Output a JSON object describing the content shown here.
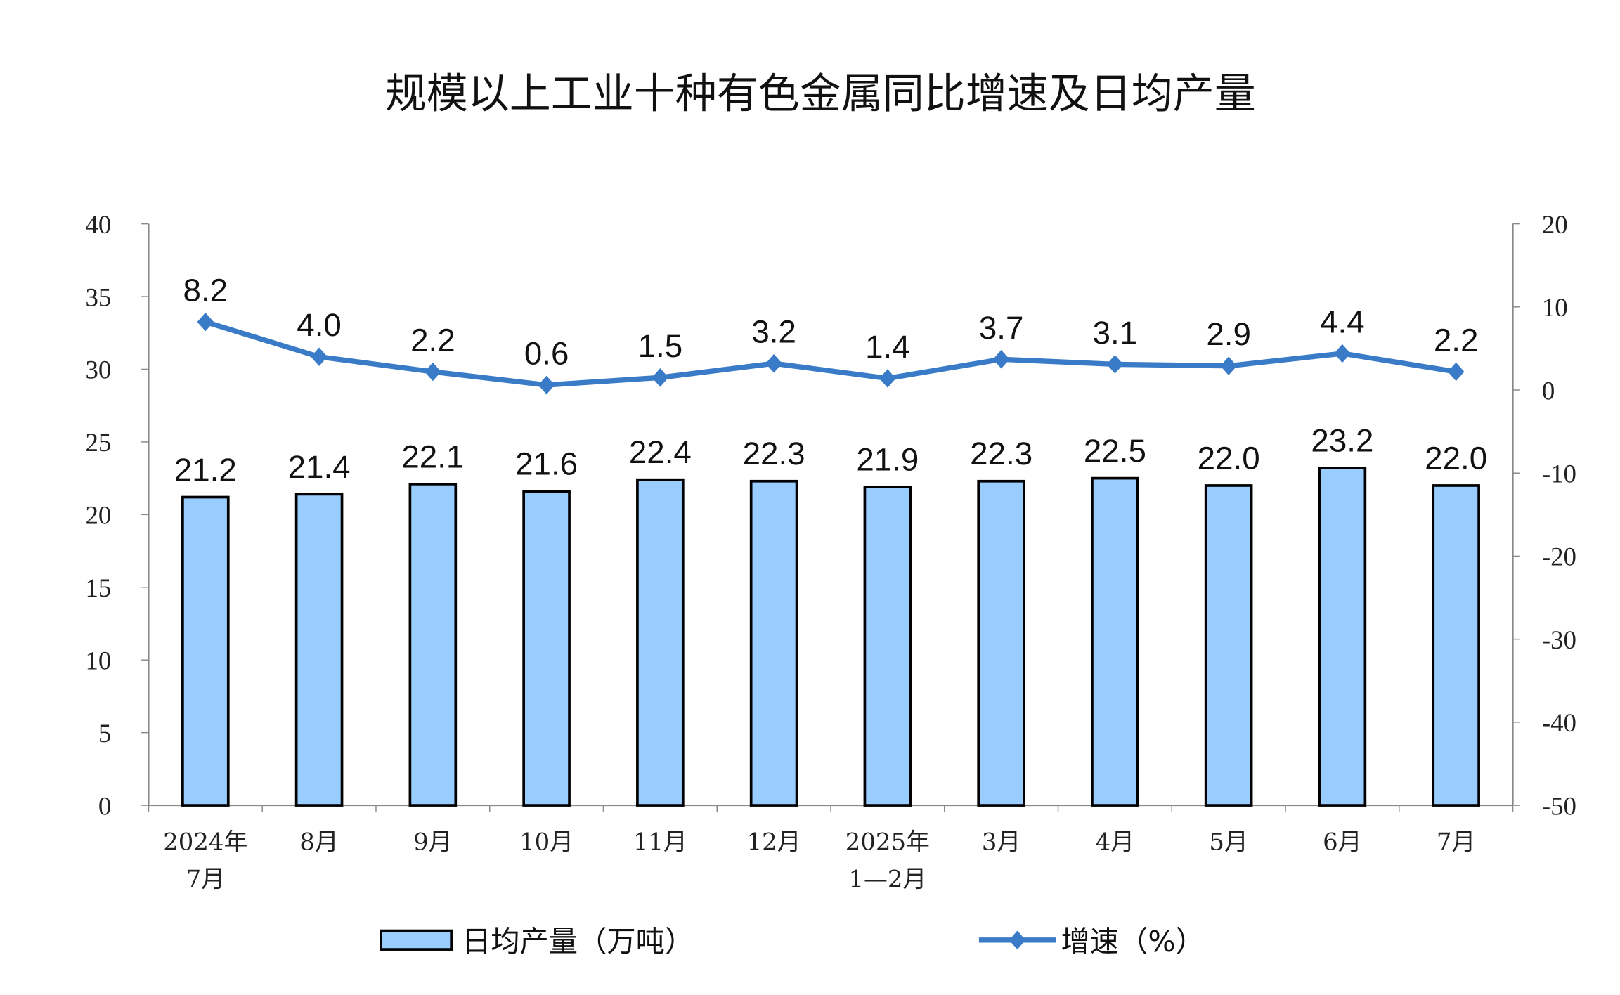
{
  "chart_data": {
    "type": "bar+line",
    "title": "规模以上工业十种有色金属同比增速及日均产量",
    "categories": [
      [
        "2024年",
        "7月"
      ],
      [
        "8月"
      ],
      [
        "9月"
      ],
      [
        "10月"
      ],
      [
        "11月"
      ],
      [
        "12月"
      ],
      [
        "2025年",
        "1—2月"
      ],
      [
        "3月"
      ],
      [
        "4月"
      ],
      [
        "5月"
      ],
      [
        "6月"
      ],
      [
        "7月"
      ]
    ],
    "series": [
      {
        "name": "日均产量（万吨）",
        "type": "bar",
        "axis": "left",
        "color": "#99CCFF",
        "values": [
          21.2,
          21.4,
          22.1,
          21.6,
          22.4,
          22.3,
          21.9,
          22.3,
          22.5,
          22.0,
          23.2,
          22.0
        ],
        "labels": [
          "21.2",
          "21.4",
          "22.1",
          "21.6",
          "22.4",
          "22.3",
          "21.9",
          "22.3",
          "22.5",
          "22.0",
          "23.2",
          "22.0"
        ]
      },
      {
        "name": "增速（%）",
        "type": "line",
        "axis": "right",
        "color": "#3A7BC8",
        "values": [
          8.2,
          4.0,
          2.2,
          0.6,
          1.5,
          3.2,
          1.4,
          3.7,
          3.1,
          2.9,
          4.4,
          2.2
        ],
        "labels": [
          "8.2",
          "4.0",
          "2.2",
          "0.6",
          "1.5",
          "3.2",
          "1.4",
          "3.7",
          "3.1",
          "2.9",
          "4.4",
          "2.2"
        ]
      }
    ],
    "left_axis": {
      "ylim": [
        0,
        40
      ],
      "ticks": [
        "0",
        "5",
        "10",
        "15",
        "20",
        "25",
        "30",
        "35",
        "40"
      ]
    },
    "right_axis": {
      "ylim": [
        -50,
        20
      ],
      "ticks": [
        "-50",
        "-40",
        "-30",
        "-20",
        "-10",
        "0",
        "10",
        "20"
      ]
    },
    "grid": false,
    "legend": "bottom"
  }
}
